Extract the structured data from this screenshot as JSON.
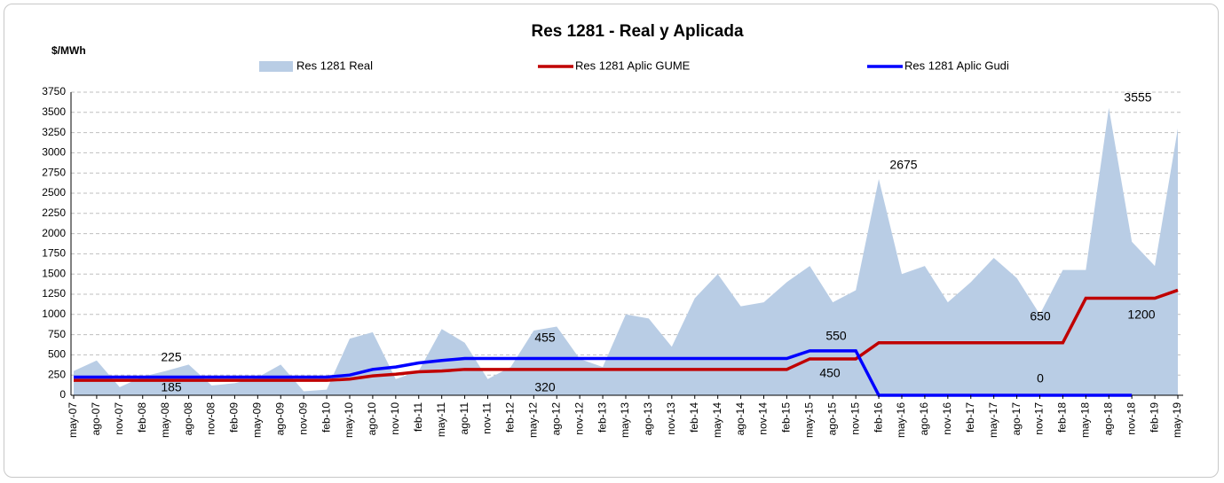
{
  "chart_data": {
    "type": "line",
    "title": "Res 1281 - Real y Aplicada",
    "y_axis_label": "$/MWh",
    "categories": [
      "may-07",
      "ago-07",
      "nov-07",
      "feb-08",
      "may-08",
      "ago-08",
      "nov-08",
      "feb-09",
      "may-09",
      "ago-09",
      "nov-09",
      "feb-10",
      "may-10",
      "ago-10",
      "nov-10",
      "feb-11",
      "may-11",
      "ago-11",
      "nov-11",
      "feb-12",
      "may-12",
      "ago-12",
      "nov-12",
      "feb-13",
      "may-13",
      "ago-13",
      "nov-13",
      "feb-14",
      "may-14",
      "ago-14",
      "nov-14",
      "feb-15",
      "may-15",
      "ago-15",
      "nov-15",
      "feb-16",
      "may-16",
      "ago-16",
      "nov-16",
      "feb-17",
      "may-17",
      "ago-17",
      "nov-17",
      "feb-18",
      "may-18",
      "ago-18",
      "nov-18",
      "feb-19",
      "may-19"
    ],
    "series": [
      {
        "name": "Res 1281 Real",
        "color": "#b9cde5",
        "style": "area",
        "values": [
          300,
          430,
          100,
          230,
          300,
          380,
          120,
          150,
          220,
          380,
          50,
          70,
          700,
          780,
          200,
          300,
          820,
          650,
          200,
          350,
          800,
          850,
          450,
          350,
          1000,
          950,
          600,
          1200,
          1500,
          1100,
          1150,
          1400,
          1600,
          1150,
          1300,
          2675,
          1500,
          1600,
          1150,
          1400,
          1700,
          1450,
          1000,
          1550,
          1550,
          3555,
          1900,
          1600,
          3300
        ]
      },
      {
        "name": "Res 1281 Aplic GUME",
        "color": "#c00000",
        "style": "line",
        "values": [
          185,
          185,
          185,
          185,
          185,
          185,
          185,
          185,
          185,
          185,
          185,
          185,
          200,
          240,
          260,
          290,
          300,
          320,
          320,
          320,
          320,
          320,
          320,
          320,
          320,
          320,
          320,
          320,
          320,
          320,
          320,
          320,
          450,
          450,
          450,
          650,
          650,
          650,
          650,
          650,
          650,
          650,
          650,
          650,
          1200,
          1200,
          1200,
          1200,
          1300
        ]
      },
      {
        "name": "Res 1281 Aplic Gudi",
        "color": "#0000ff",
        "style": "line",
        "values": [
          225,
          225,
          225,
          225,
          225,
          225,
          225,
          225,
          225,
          225,
          225,
          225,
          250,
          320,
          350,
          400,
          430,
          455,
          455,
          455,
          455,
          455,
          455,
          455,
          455,
          455,
          455,
          455,
          455,
          455,
          455,
          455,
          550,
          550,
          550,
          0,
          0,
          0,
          0,
          0,
          0,
          0,
          0,
          0,
          0,
          0,
          0,
          null,
          null
        ]
      }
    ],
    "annotations": [
      225,
      185,
      455,
      320,
      550,
      450,
      2675,
      650,
      0,
      1200,
      3555
    ],
    "ylim": [
      0,
      3750
    ],
    "yticks": [
      0,
      250,
      500,
      750,
      1000,
      1250,
      1500,
      1750,
      2000,
      2250,
      2500,
      2750,
      3000,
      3250,
      3500,
      3750
    ],
    "grid": true
  }
}
